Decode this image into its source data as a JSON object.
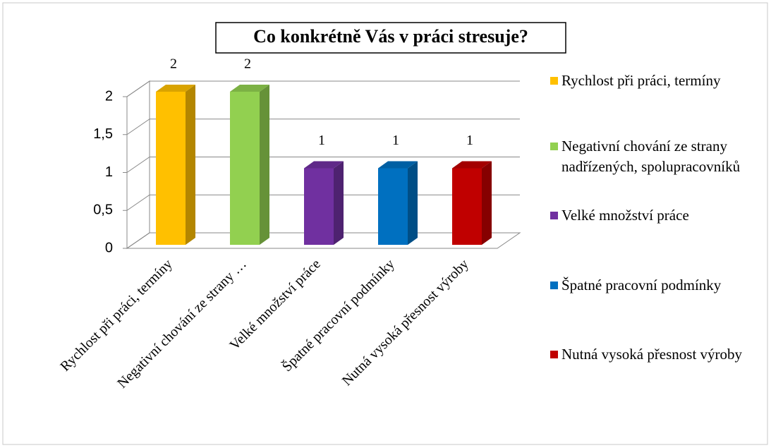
{
  "chart_data": {
    "type": "bar3d",
    "title": "Co konkrétně Vás v práci stresuje?",
    "categories": [
      "Rychlost při práci, termíny",
      "Negativní chování ze strany nadřízených, spolupracovníků",
      "Velké množství práce",
      "Špatné pracovní podmínky",
      "Nutná vysoká přesnost výroby"
    ],
    "x_tick_labels": [
      "Rychlost při práci, termíny",
      "Negativní chování ze strany …",
      "Velké množství práce",
      "Špatné pracovní podmínky",
      "Nutná vysoká přesnost výroby"
    ],
    "values": [
      2,
      2,
      1,
      1,
      1
    ],
    "colors": [
      "#ffc000",
      "#92d050",
      "#7030a0",
      "#0070c0",
      "#c00000"
    ],
    "ylim": [
      0,
      2
    ],
    "yticks": [
      0,
      {
        "value": 0.5,
        "label": "0,5"
      },
      1,
      {
        "value": 1.5,
        "label": "1,5"
      },
      2
    ],
    "grid": true,
    "legend": "right"
  }
}
